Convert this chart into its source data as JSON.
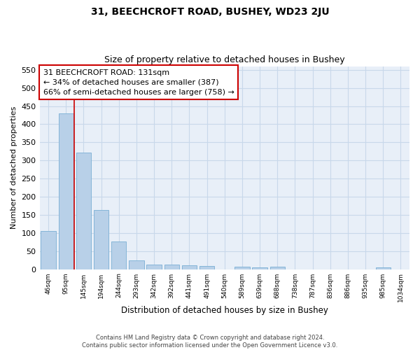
{
  "title1": "31, BEECHCROFT ROAD, BUSHEY, WD23 2JU",
  "title2": "Size of property relative to detached houses in Bushey",
  "xlabel": "Distribution of detached houses by size in Bushey",
  "ylabel": "Number of detached properties",
  "footer1": "Contains HM Land Registry data © Crown copyright and database right 2024.",
  "footer2": "Contains public sector information licensed under the Open Government Licence v3.0.",
  "categories": [
    "46sqm",
    "95sqm",
    "145sqm",
    "194sqm",
    "244sqm",
    "293sqm",
    "342sqm",
    "392sqm",
    "441sqm",
    "491sqm",
    "540sqm",
    "589sqm",
    "639sqm",
    "688sqm",
    "738sqm",
    "787sqm",
    "836sqm",
    "886sqm",
    "935sqm",
    "985sqm",
    "1034sqm"
  ],
  "values": [
    105,
    430,
    322,
    164,
    76,
    25,
    12,
    13,
    11,
    8,
    0,
    6,
    5,
    6,
    0,
    0,
    0,
    0,
    0,
    5,
    0
  ],
  "bar_color": "#b8d0e8",
  "bar_edge_color": "#7aafd4",
  "grid_color": "#c8d8ea",
  "bg_color": "#e8eff8",
  "annotation_line1": "31 BEECHCROFT ROAD: 131sqm",
  "annotation_line2": "← 34% of detached houses are smaller (387)",
  "annotation_line3": "66% of semi-detached houses are larger (758) →",
  "annotation_box_color": "white",
  "annotation_box_edge": "#cc0000",
  "vline_color": "#cc0000",
  "ylim": [
    0,
    560
  ],
  "yticks": [
    0,
    50,
    100,
    150,
    200,
    250,
    300,
    350,
    400,
    450,
    500,
    550
  ]
}
